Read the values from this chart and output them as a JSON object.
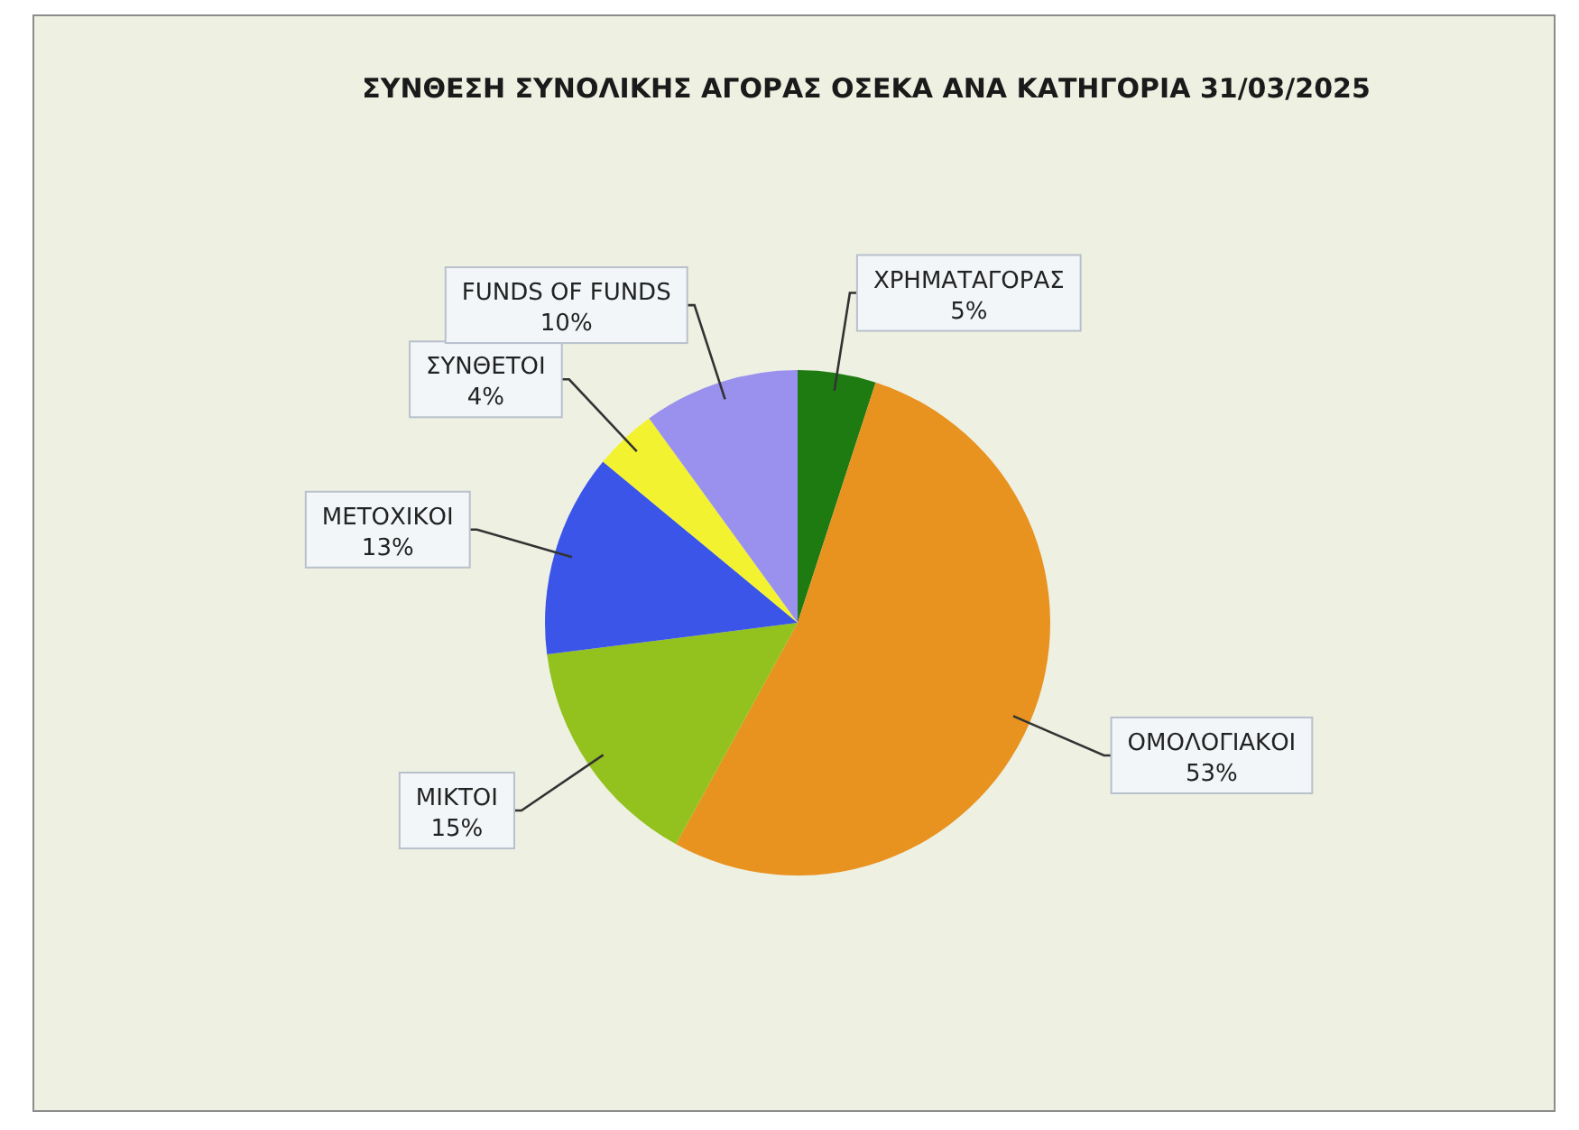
{
  "chart_data": {
    "type": "pie",
    "title": "ΣΥΝΘΕΣΗ ΣΥΝΟΛΙΚΗΣ ΑΓΟΡΑΣ ΟΣΕΚΑ ΑΝΑ ΚΑΤΗΓΟΡΙΑ 31/03/2025",
    "categories": [
      "ΧΡΗΜΑΤΑΓΟΡΑΣ",
      "ΟΜΟΛΟΓΙΑΚΟΙ",
      "ΜΙΚΤΟΙ",
      "ΜΕΤΟΧΙΚΟΙ",
      "ΣΥΝΘΕΤΟΙ",
      "FUNDS OF FUNDS"
    ],
    "values": [
      5,
      53,
      15,
      13,
      4,
      10
    ],
    "colors": [
      "#1e7b12",
      "#e89220",
      "#93c21e",
      "#3a55e8",
      "#f2f230",
      "#9a90ee"
    ],
    "value_labels": [
      "5%",
      "53%",
      "15%",
      "13%",
      "4%",
      "10%"
    ]
  }
}
